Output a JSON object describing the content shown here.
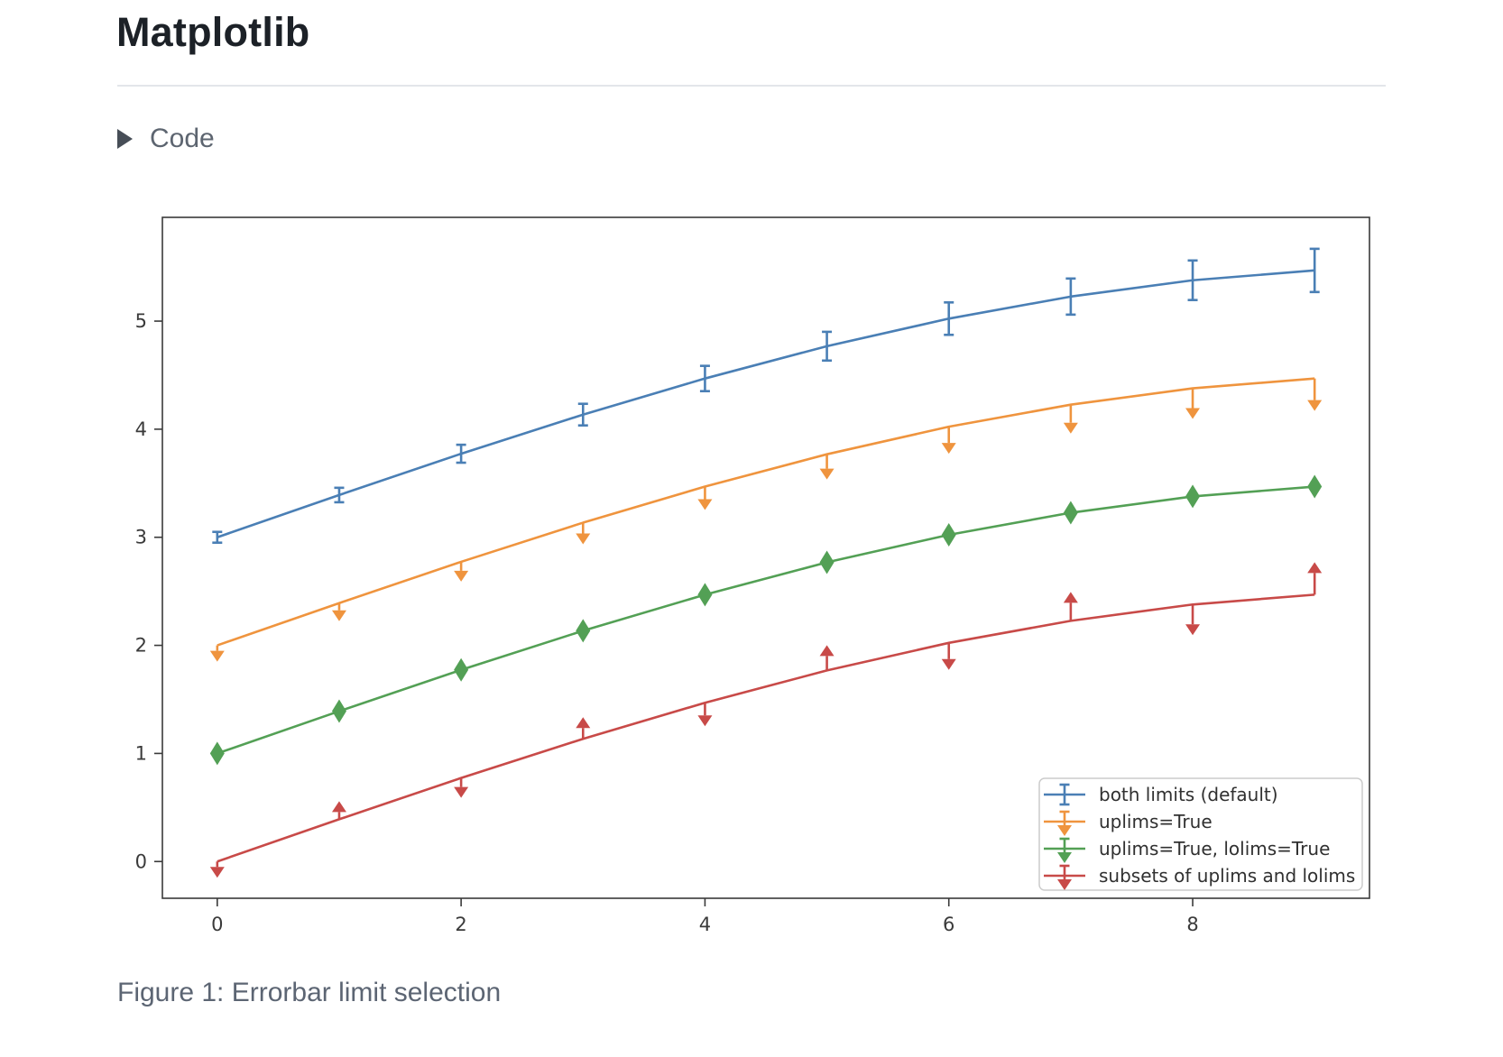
{
  "page": {
    "title": "Matplotlib",
    "code_label": "Code",
    "caption": "Figure 1: Errorbar limit selection"
  },
  "chart_data": {
    "type": "line",
    "title": "",
    "xlabel": "",
    "ylabel": "",
    "grid": false,
    "legend_position": "lower right",
    "axis_color": "#3a3a3a",
    "legend_border_color": "#cccccc",
    "x": [
      0,
      1,
      2,
      3,
      4,
      5,
      6,
      7,
      8,
      9
    ],
    "yerr": [
      0.05,
      0.067,
      0.083,
      0.1,
      0.117,
      0.133,
      0.15,
      0.167,
      0.183,
      0.2
    ],
    "xticks": [
      0,
      2,
      4,
      6,
      8
    ],
    "yticks": [
      0,
      1,
      2,
      3,
      4,
      5
    ],
    "xlim": [
      -0.45,
      9.45
    ],
    "ylim": [
      -0.34,
      5.96
    ],
    "series": [
      {
        "id": "both-limits",
        "name": "both limits (default)",
        "color": "#4a7fb5",
        "limits": "caps",
        "values": [
          3.0,
          3.391,
          3.773,
          4.135,
          4.469,
          4.768,
          5.023,
          5.227,
          5.378,
          5.469
        ]
      },
      {
        "id": "uplims",
        "name": "uplims=True",
        "color": "#ef943e",
        "limits": "uplims",
        "values": [
          2.0,
          2.391,
          2.773,
          3.135,
          3.469,
          3.768,
          4.023,
          4.227,
          4.378,
          4.469
        ]
      },
      {
        "id": "uplims-lolims",
        "name": "uplims=True, lolims=True",
        "color": "#53a055",
        "limits": "both",
        "values": [
          1.0,
          1.391,
          1.773,
          2.135,
          2.469,
          2.768,
          3.023,
          3.227,
          3.378,
          3.469
        ]
      },
      {
        "id": "subsets",
        "name": "subsets of uplims and lolims",
        "color": "#c84a48",
        "limits": "alternating",
        "uplims_at": [
          0,
          2,
          4,
          6,
          8
        ],
        "lolims_at": [
          1,
          3,
          5,
          7,
          9
        ],
        "values": [
          0.0,
          0.391,
          0.773,
          1.135,
          1.469,
          1.768,
          2.023,
          2.227,
          2.378,
          2.469
        ]
      }
    ]
  }
}
